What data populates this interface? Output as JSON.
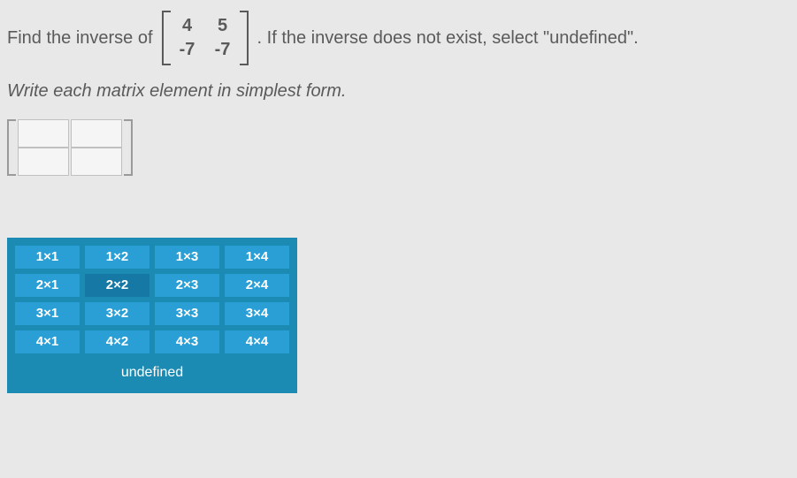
{
  "prompt": {
    "prefix": "Find the inverse of",
    "suffix": ". If the inverse does not exist, select \"undefined\"."
  },
  "matrix": {
    "rows": 2,
    "cols": 2,
    "a11": "4",
    "a12": "5",
    "a21": "-7",
    "a22": "-7"
  },
  "instruction": "Write each matrix element in simplest form.",
  "answer_inputs": {
    "a11": "",
    "a12": "",
    "a21": "",
    "a22": ""
  },
  "size_selector": {
    "selected": "2x2",
    "rows": [
      [
        {
          "label": "1×1",
          "id": "1x1"
        },
        {
          "label": "1×2",
          "id": "1x2"
        },
        {
          "label": "1×3",
          "id": "1x3"
        },
        {
          "label": "1×4",
          "id": "1x4"
        }
      ],
      [
        {
          "label": "2×1",
          "id": "2x1"
        },
        {
          "label": "2×2",
          "id": "2x2"
        },
        {
          "label": "2×3",
          "id": "2x3"
        },
        {
          "label": "2×4",
          "id": "2x4"
        }
      ],
      [
        {
          "label": "3×1",
          "id": "3x1"
        },
        {
          "label": "3×2",
          "id": "3x2"
        },
        {
          "label": "3×3",
          "id": "3x3"
        },
        {
          "label": "3×4",
          "id": "3x4"
        }
      ],
      [
        {
          "label": "4×1",
          "id": "4x1"
        },
        {
          "label": "4×2",
          "id": "4x2"
        },
        {
          "label": "4×3",
          "id": "4x3"
        },
        {
          "label": "4×4",
          "id": "4x4"
        }
      ]
    ],
    "undefined_label": "undefined"
  },
  "colors": {
    "page_bg": "#e8e8e8",
    "text": "#5a5a5a",
    "btn_bg": "#2a9fd6",
    "btn_selected": "#1578a5",
    "grid_bg": "#1b8bb4",
    "btn_text": "#ffffff",
    "input_border": "#c0c0c0",
    "input_bg": "#f5f5f5"
  }
}
